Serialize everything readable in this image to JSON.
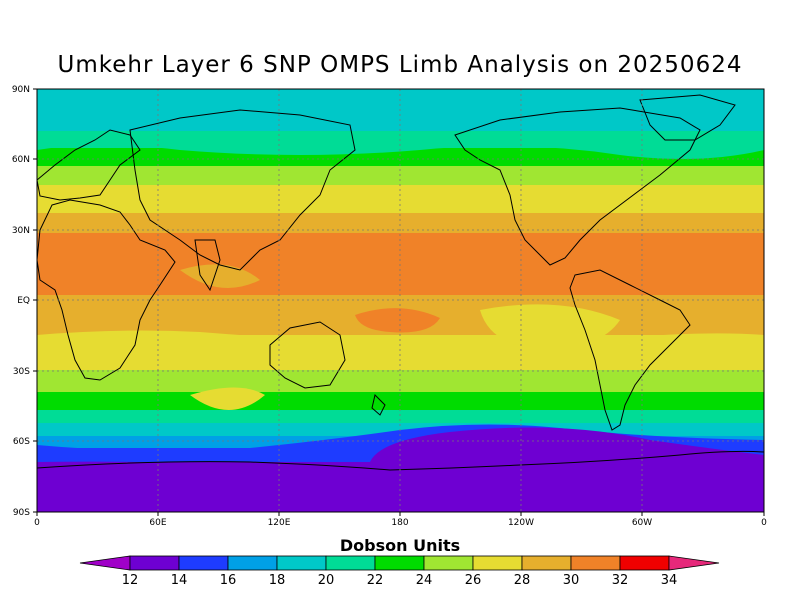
{
  "title": "Umkehr Layer 6 SNP OMPS Limb Analysis on 20250624",
  "colorbar": {
    "label": "Dobson Units",
    "ticks": [
      "12",
      "14",
      "16",
      "18",
      "20",
      "22",
      "24",
      "26",
      "28",
      "30",
      "32",
      "34"
    ],
    "colors": [
      "#a000c8",
      "#6e00d2",
      "#1e3cff",
      "#00a0e6",
      "#00c8c8",
      "#00dc96",
      "#00dc00",
      "#a0e632",
      "#e6dc32",
      "#e6af2d",
      "#f08228",
      "#f00000",
      "#e6287a"
    ]
  },
  "axes": {
    "lat_ticks": [
      "90N",
      "60N",
      "30N",
      "EQ",
      "30S",
      "60S",
      "90S"
    ],
    "lon_ticks": [
      "0",
      "60E",
      "120E",
      "180",
      "120W",
      "60W",
      "0"
    ]
  },
  "chart_data": {
    "type": "heatmap",
    "title": "Umkehr Layer 6 SNP OMPS Limb Analysis on 20250624",
    "units": "Dobson Units",
    "xlim": [
      0,
      360
    ],
    "ylim": [
      -90,
      90
    ],
    "grid": true,
    "legend": "bottom",
    "zonal_bands": [
      {
        "lat_from": 90,
        "lat_to": 72,
        "value_du": 19
      },
      {
        "lat_from": 72,
        "lat_to": 65,
        "value_du": 21
      },
      {
        "lat_from": 65,
        "lat_to": 58,
        "value_du": 23
      },
      {
        "lat_from": 58,
        "lat_to": 50,
        "value_du": 25
      },
      {
        "lat_from": 50,
        "lat_to": 38,
        "value_du": 27
      },
      {
        "lat_from": 38,
        "lat_to": 30,
        "value_du": 29
      },
      {
        "lat_from": 30,
        "lat_to": 10,
        "value_du": 31
      },
      {
        "lat_from": 10,
        "lat_to": -15,
        "value_du": 29
      },
      {
        "lat_from": -15,
        "lat_to": -28,
        "value_du": 27
      },
      {
        "lat_from": -28,
        "lat_to": -38,
        "value_du": 25
      },
      {
        "lat_from": -38,
        "lat_to": -46,
        "value_du": 23
      },
      {
        "lat_from": -46,
        "lat_to": -52,
        "value_du": 21
      },
      {
        "lat_from": -52,
        "lat_to": -58,
        "value_du": 19
      },
      {
        "lat_from": -58,
        "lat_to": -64,
        "value_du": 17
      },
      {
        "lat_from": -64,
        "lat_to": -70,
        "value_du": 15
      },
      {
        "lat_from": -70,
        "lat_to": -90,
        "value_du": 13
      }
    ]
  }
}
